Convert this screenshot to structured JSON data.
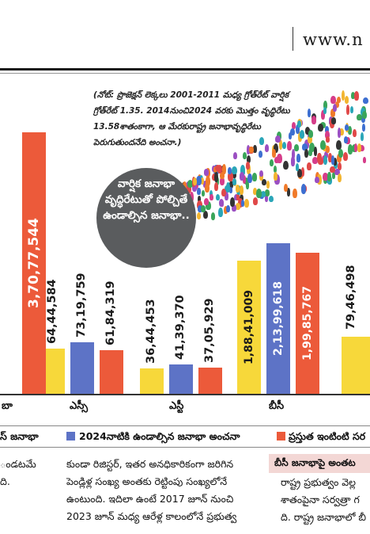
{
  "masthead": {
    "site": "www.n"
  },
  "note": "(నోట్: ప్రొజెక్షన్ లెక్కలు 2001-2011 మధ్య గ్రోత్‌రేట్ వార్షిక గ్రోత్‌రేట్ 1.35. 2014నుంచి2024 వరకు మొత్తం వృద్ధిరేటు 13.58శాతంకాగా, ఆ మేరకురాష్ట్ర జనాభావృద్ధిరేటు పెరుగుతుందనేది అంచనా.)",
  "bubble_text": "వార్షిక జనాభా వృద్ధిరేటుతో పోల్చితే ఉండాల్సిన జనాభా..",
  "colors": {
    "yellow": "#f7d83a",
    "blue": "#5d73c6",
    "red": "#ec5a3a",
    "bubble": "#5a5c5e"
  },
  "chart_data": {
    "type": "bar",
    "categories": [
      "బా",
      "ఎస్సీ",
      "ఎస్టీ",
      "బీసీ"
    ],
    "series": [
      {
        "name": "స్ జనాభా",
        "values": [
          null,
          6444584,
          3644453,
          18841009
        ]
      },
      {
        "name": "2024నాటికి ఉండాల్సిన జనాభా అంచనా",
        "values": [
          null,
          7319759,
          4139370,
          21399618
        ]
      },
      {
        "name": "ప్రస్తుత ఇంటింటి సర",
        "values": [
          37077544,
          6184319,
          3705929,
          19985767
        ]
      }
    ],
    "value_labels": [
      [
        "",
        "64,44,584",
        "36,44,453",
        "1,88,41,009"
      ],
      [
        "",
        "73,19,759",
        "41,39,370",
        "2,13,99,618"
      ],
      [
        "3,70,77,544",
        "61,84,319",
        "37,05,929",
        "1,99,85,767"
      ]
    ],
    "partial_bar": {
      "label": "79,46,498"
    }
  },
  "legend": {
    "item1": "స్ జనాభా",
    "item2": "2024నాటికి ఉండాల్సిన జనాభా అంచనా",
    "item3": "ప్రస్తుత ఇంటింటి సర"
  },
  "article": {
    "col1_line1": "ండటమే",
    "col1_line2": "ది.",
    "col2_line1": "కుండా రిజిస్టర్, ఇతర అనధికారికంగా జరిగిన",
    "col2_line2": "పెండ్లిళ్ల సంఖ్య అంతకు రెట్టింపు సంఖ్యలోనే",
    "col2_line3": "ఉంటుంది. ఇదిలా ఉంటే 2017 జూన్ నుంచి",
    "col2_line4": "2023 జూన్ మధ్య ఆరేళ్ల కాలంలోనే ప్రభుత్వ",
    "side_header": "బీసీ జనాభాపై అంతట",
    "side_line1": "రాష్ట్ర ప్రభుత్వం వెల్ల",
    "side_line2": "శాతంపైనా సర్వత్రా గ",
    "side_line3": "ది. రాష్ట్ర జనాభాలో బీ"
  }
}
